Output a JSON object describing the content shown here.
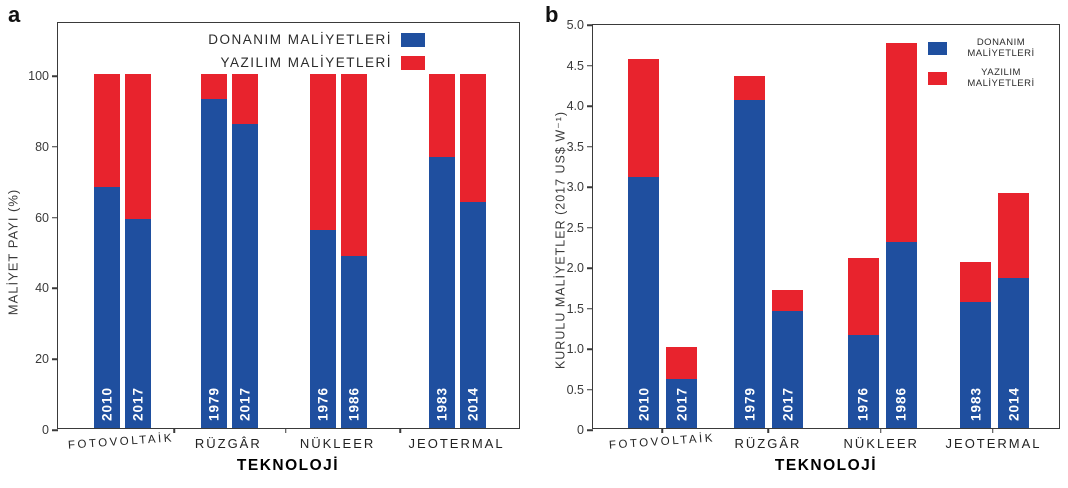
{
  "figure": {
    "panels": [
      {
        "letter": "a"
      },
      {
        "letter": "b"
      }
    ],
    "xlabel": "TEKNOLOJİ"
  },
  "colors": {
    "hardware_blue": "#1f4f9f",
    "software_red": "#e8232d",
    "axis": "#3a3a3a",
    "year_text": "#ffffff"
  },
  "chart_data": [
    {
      "panel": "a",
      "type": "bar",
      "stacked": true,
      "title": "",
      "xlabel": "TEKNOLOJİ",
      "ylabel": "MALİYET PAYI  (%)",
      "ylim": [
        0,
        115
      ],
      "yticks": [
        "0",
        "20",
        "40",
        "60",
        "80",
        "100"
      ],
      "ytick_values": [
        0,
        20,
        40,
        60,
        80,
        100
      ],
      "grid": false,
      "legend_position": "top-center, text right-aligned with swatch at right",
      "categories": [
        "FOTOVOLTAİK",
        "RÜZGÂR",
        "NÜKLEER",
        "JEOTERMAL"
      ],
      "bar_labels": [
        "2010",
        "2017",
        "1979",
        "2017",
        "1976",
        "1986",
        "1983",
        "2014"
      ],
      "series": [
        {
          "name": "DONANIM MALİYETLERİ",
          "color": "#1f4f9f",
          "values": [
            68,
            59,
            93,
            86,
            56,
            48.5,
            76.5,
            64
          ]
        },
        {
          "name": "YAZILIM MALİYETLERİ",
          "color": "#e8232d",
          "values": [
            32,
            41,
            7,
            14,
            44,
            51.5,
            23.5,
            36
          ]
        }
      ]
    },
    {
      "panel": "b",
      "type": "bar",
      "stacked": true,
      "title": "",
      "xlabel": "TEKNOLOJİ",
      "ylabel": "KURULU MALİYETLER (2017 US$ W⁻¹)",
      "ylim": [
        0,
        5.0
      ],
      "yticks": [
        "0",
        "0.5",
        "1.0",
        "1.5",
        "2.0",
        "2.5",
        "3.0",
        "3.5",
        "4.0",
        "4.5",
        "5.0"
      ],
      "ytick_values": [
        0,
        0.5,
        1.0,
        1.5,
        2.0,
        2.5,
        3.0,
        3.5,
        4.0,
        4.5,
        5.0
      ],
      "grid": false,
      "legend_position": "top-right, swatch left of two-line text",
      "categories": [
        "FOTOVOLTAİK",
        "RÜZGÂR",
        "NÜKLEER",
        "JEOTERMAL"
      ],
      "bar_labels": [
        "2010",
        "2017",
        "1979",
        "2017",
        "1976",
        "1986",
        "1983",
        "2014"
      ],
      "series": [
        {
          "name": "DONANIM MALİYETLERİ",
          "color": "#1f4f9f",
          "values": [
            3.1,
            0.6,
            4.05,
            1.45,
            1.15,
            2.3,
            1.55,
            1.85
          ]
        },
        {
          "name": "YAZILIM MALİYETLERİ",
          "color": "#e8232d",
          "values": [
            1.45,
            0.4,
            0.3,
            0.25,
            0.95,
            2.45,
            0.5,
            1.05
          ]
        }
      ]
    }
  ]
}
